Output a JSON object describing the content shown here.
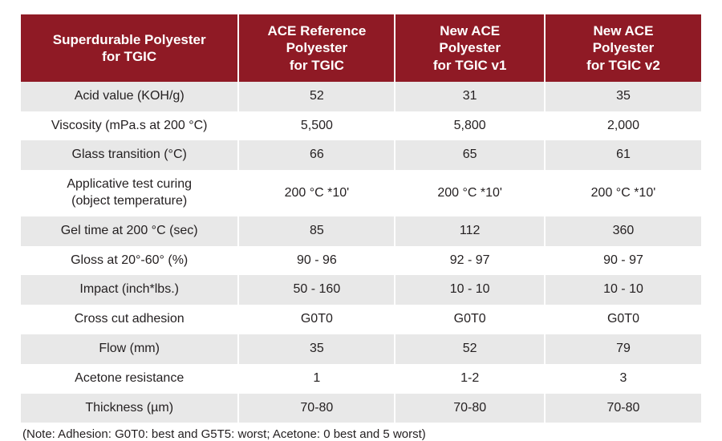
{
  "table": {
    "header_bg": "#8f1a25",
    "header_fg": "#ffffff",
    "row_odd_bg": "#e8e8e8",
    "row_even_bg": "#ffffff",
    "text_color": "#231f20",
    "font_size_header": 17,
    "font_size_body": 16,
    "columns": [
      {
        "label_line1": "Superdurable Polyester",
        "label_line2": "for TGIC"
      },
      {
        "label_line1": "ACE Reference",
        "label_line2": "Polyester",
        "label_line3": "for TGIC"
      },
      {
        "label_line1": "New ACE",
        "label_line2": "Polyester",
        "label_line3": "for TGIC v1"
      },
      {
        "label_line1": "New ACE",
        "label_line2": "Polyester",
        "label_line3": "for TGIC v2"
      }
    ],
    "rows": [
      {
        "label": "Acid value (KOH/g)",
        "c1": "52",
        "c2": "31",
        "c3": "35"
      },
      {
        "label": "Viscosity (mPa.s at 200 °C)",
        "c1": "5,500",
        "c2": "5,800",
        "c3": "2,000"
      },
      {
        "label": "Glass transition (°C)",
        "c1": "66",
        "c2": "65",
        "c3": "61"
      },
      {
        "label_line1": "Applicative test curing",
        "label_line2": "(object temperature)",
        "c1": "200 °C *10'",
        "c2": "200 °C *10'",
        "c3": "200 °C *10'"
      },
      {
        "label": "Gel time at 200 °C (sec)",
        "c1": "85",
        "c2": "112",
        "c3": "360"
      },
      {
        "label": "Gloss at 20°-60° (%)",
        "c1": "90 - 96",
        "c2": "92 - 97",
        "c3": "90 - 97"
      },
      {
        "label": "Impact (inch*lbs.)",
        "c1": "50 - 160",
        "c2": "10 - 10",
        "c3": "10 - 10"
      },
      {
        "label": "Cross cut adhesion",
        "c1": "G0T0",
        "c2": "G0T0",
        "c3": "G0T0"
      },
      {
        "label": "Flow (mm)",
        "c1": "35",
        "c2": "52",
        "c3": "79"
      },
      {
        "label": "Acetone resistance",
        "c1": "1",
        "c2": "1-2",
        "c3": "3"
      },
      {
        "label": "Thickness (µm)",
        "c1": "70-80",
        "c2": "70-80",
        "c3": "70-80"
      }
    ]
  },
  "note": "(Note: Adhesion: G0T0: best and G5T5: worst; Acetone: 0 best and 5 worst)"
}
